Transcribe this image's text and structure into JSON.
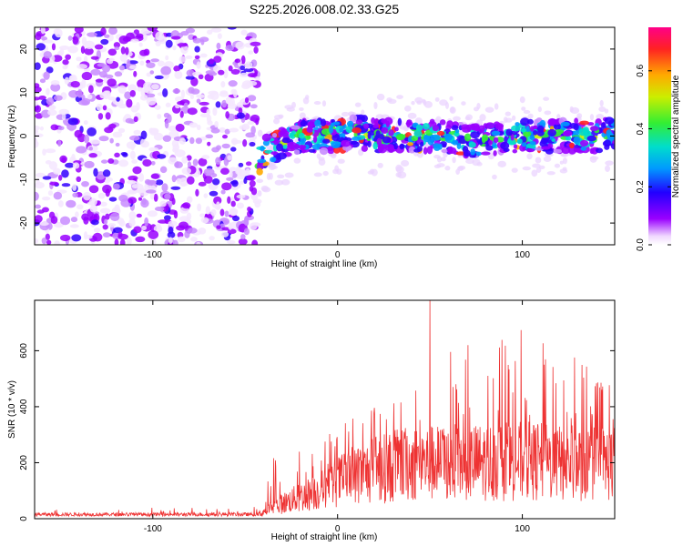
{
  "title": "S225.2026.008.02.33.G25",
  "chart_data": [
    {
      "type": "heatmap",
      "xlabel": "Height of straight line (km)",
      "ylabel": "Frequency (Hz)",
      "xlim": [
        -164,
        150
      ],
      "ylim": [
        -25,
        25
      ],
      "xticks": [
        -100,
        0,
        100
      ],
      "yticks": [
        -20,
        -10,
        0,
        10,
        20
      ],
      "noise_region_x": [
        -164,
        -43
      ],
      "signal_onset_x": -43,
      "signal_centerline": {
        "x": [
          -43,
          -38,
          -30,
          -20,
          -10,
          0,
          10,
          20,
          30,
          40,
          50,
          60,
          70,
          80,
          90,
          100,
          110,
          120,
          130,
          140,
          150
        ],
        "y": [
          -6,
          -3,
          -2,
          0,
          0,
          0,
          1,
          0,
          0,
          0,
          0,
          0,
          -1,
          -1,
          0,
          0,
          0,
          0,
          0,
          0,
          1
        ]
      },
      "colorbar": {
        "label": "Normalized spectral amplitude",
        "range": [
          0.0,
          0.75
        ],
        "ticks": [
          0.0,
          0.2,
          0.4,
          0.6
        ],
        "tick_labels": [
          "0.0",
          "0.2",
          "0.4",
          "0.6"
        ]
      }
    },
    {
      "type": "line",
      "xlabel": "Height of straight line (km)",
      "ylabel": "SNR (10 * v/v)",
      "xlim": [
        -164,
        150
      ],
      "ylim": [
        0,
        780
      ],
      "xticks": [
        -100,
        0,
        100
      ],
      "yticks": [
        0,
        200,
        400,
        600
      ],
      "series": [
        {
          "name": "SNR",
          "color": "#ee3333",
          "envelope_x": [
            -164,
            -43,
            -35,
            -25,
            -10,
            0,
            20,
            40,
            60,
            80,
            100,
            120,
            150
          ],
          "envelope_mean": [
            18,
            18,
            50,
            80,
            120,
            160,
            210,
            240,
            240,
            245,
            250,
            240,
            240
          ],
          "envelope_max": [
            40,
            40,
            250,
            220,
            300,
            330,
            430,
            520,
            600,
            640,
            680,
            620,
            480
          ],
          "peak": {
            "x": 50,
            "y": 780
          }
        }
      ]
    }
  ],
  "colors": {
    "signal_line": "#ee3333",
    "axis": "#000000"
  }
}
